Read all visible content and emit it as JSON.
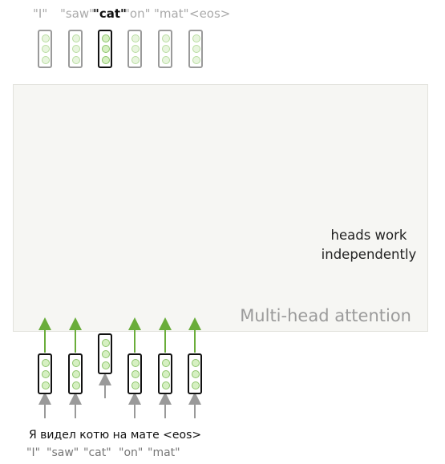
{
  "output_tokens": [
    "\"I\"",
    "\"saw\"",
    "\"cat\"",
    "\"on\"",
    "\"mat\"",
    "<eos>"
  ],
  "output_highlight_index": 2,
  "block_label": "Multi-head attention",
  "annotation": "heads work independently",
  "source_sentence": "Я видел котю на мате <eos>",
  "input_tokens": [
    "\"I\"",
    "\"saw\"",
    "\"cat\"",
    "\"on\"",
    "\"mat\""
  ],
  "colors": {
    "arrow_green": "#6aad3a",
    "arrow_gray": "#9a9a9a",
    "dot_fill": "#d6f0c2"
  }
}
